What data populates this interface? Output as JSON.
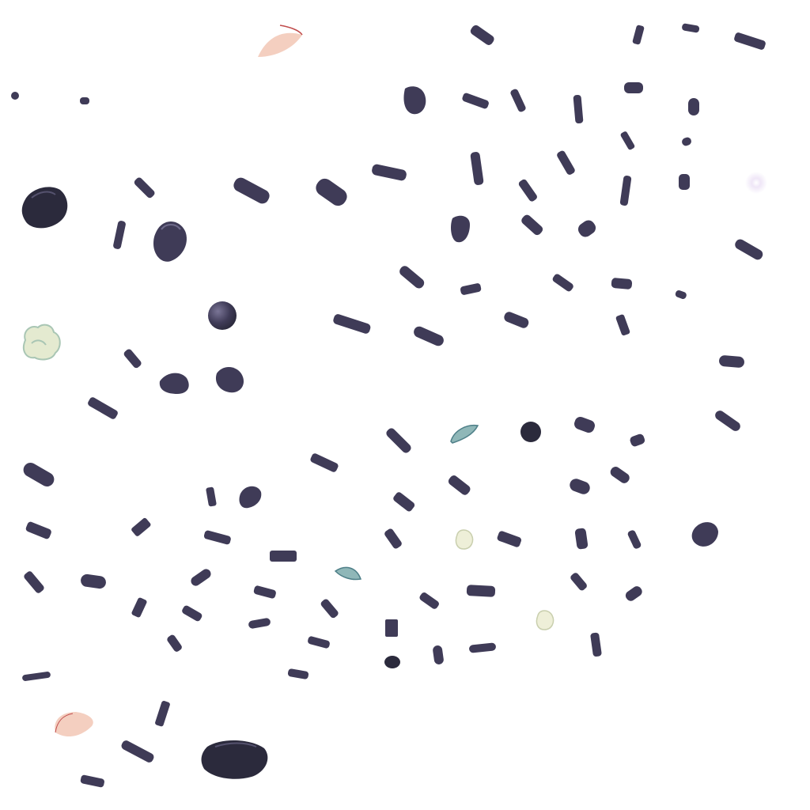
{
  "sheet": {
    "kind": "sprite-atlas",
    "background_color": "#ffffff",
    "colors": {
      "stone": "#3f3b57",
      "stone_dark": "#2b2a3c",
      "stone_highlight": "#6e6a8a",
      "leaf": "#8fb7b8",
      "leaf_dark": "#4e7f88",
      "foliage_pale": "#e4ead0",
      "foliage_shade": "#a9c6b4",
      "petal_pink": "#f4cfc0",
      "petal_rim": "#c04b4b",
      "sparkle": "#efe6f7"
    },
    "sprite_kinds": [
      "stone-chip",
      "boulder",
      "pebble-round",
      "leaf",
      "foliage-tuft",
      "petal",
      "sparkle"
    ]
  }
}
